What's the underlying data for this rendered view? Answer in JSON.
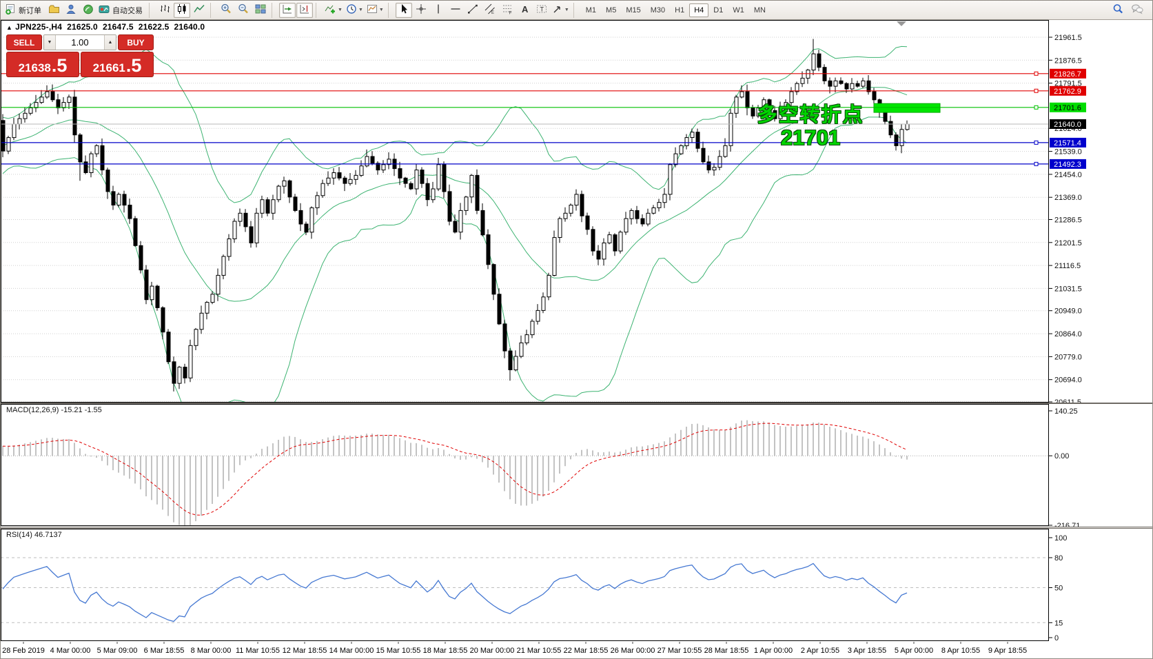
{
  "toolbar": {
    "new_order": "新订单",
    "auto_trading": "自动交易",
    "timeframes": [
      "M1",
      "M5",
      "M15",
      "M30",
      "H1",
      "H4",
      "D1",
      "W1",
      "MN"
    ],
    "active_timeframe": "H4"
  },
  "chart_header": {
    "collapse_glyph": "▲",
    "symbol_period": "JPN225-,H4",
    "open": "21625.0",
    "high": "21647.5",
    "low": "21622.5",
    "close": "21640.0"
  },
  "trade_panel": {
    "sell_label": "SELL",
    "buy_label": "BUY",
    "volume": "1.00",
    "down_glyph": "▼",
    "up_glyph": "▲",
    "sell_price_main": "21638",
    "sell_price_frac": ".5",
    "buy_price_main": "21661",
    "buy_price_frac": ".5"
  },
  "annotation": {
    "line1": "多空转折点",
    "line2": "21701"
  },
  "colors": {
    "bull": "#ffffff",
    "bear": "#000000",
    "wick": "#000000",
    "grid": "#cfcfcf",
    "frame": "#000000",
    "bollinger": "#3cb371",
    "line_red": "#e00000",
    "line_green": "#00c000",
    "line_blue": "#0000c8",
    "bid_line": "#b8b8b8",
    "bid_badge": "#000000",
    "macd_hist": "#b4b4b4",
    "macd_signal": "#e00000",
    "rsi_line": "#4578d2",
    "level_dash": "#bdbdbd",
    "highlight": "#00e600",
    "accent_red": "#d42b26",
    "annotation_green": "#00d300"
  },
  "chart_data": {
    "type": "candlestick",
    "title": "JPN225-,H4",
    "ohlc_display": [
      21625.0,
      21647.5,
      21622.5,
      21640.0
    ],
    "bid": 21640.0,
    "candles_total": 165,
    "price_axis_ticks": [
      21961.5,
      21876.5,
      21791.5,
      21624.0,
      21539.0,
      21454.0,
      21369.0,
      21286.5,
      21201.5,
      21116.5,
      21031.5,
      20949.0,
      20864.0,
      20779.0,
      20694.0,
      20611.5
    ],
    "close_anchors": [
      [
        0,
        21540
      ],
      [
        2,
        21640
      ],
      [
        4,
        21680
      ],
      [
        6,
        21720
      ],
      [
        8,
        21760
      ],
      [
        10,
        21700
      ],
      [
        12,
        21740
      ],
      [
        13,
        21600
      ],
      [
        14,
        21500
      ],
      [
        15,
        21460
      ],
      [
        16,
        21530
      ],
      [
        17,
        21560
      ],
      [
        18,
        21470
      ],
      [
        19,
        21390
      ],
      [
        20,
        21340
      ],
      [
        21,
        21380
      ],
      [
        22,
        21340
      ],
      [
        23,
        21290
      ],
      [
        24,
        21190
      ],
      [
        25,
        21100
      ],
      [
        26,
        20990
      ],
      [
        27,
        21040
      ],
      [
        28,
        20960
      ],
      [
        29,
        20870
      ],
      [
        30,
        20760
      ],
      [
        31,
        20680
      ],
      [
        32,
        20740
      ],
      [
        33,
        20700
      ],
      [
        34,
        20820
      ],
      [
        35,
        20880
      ],
      [
        36,
        20940
      ],
      [
        37,
        20980
      ],
      [
        38,
        21010
      ],
      [
        40,
        21150
      ],
      [
        42,
        21280
      ],
      [
        43,
        21310
      ],
      [
        44,
        21260
      ],
      [
        45,
        21200
      ],
      [
        46,
        21310
      ],
      [
        47,
        21360
      ],
      [
        48,
        21310
      ],
      [
        50,
        21410
      ],
      [
        51,
        21430
      ],
      [
        52,
        21370
      ],
      [
        54,
        21270
      ],
      [
        55,
        21240
      ],
      [
        56,
        21330
      ],
      [
        58,
        21420
      ],
      [
        60,
        21460
      ],
      [
        62,
        21420
      ],
      [
        64,
        21450
      ],
      [
        66,
        21520
      ],
      [
        68,
        21470
      ],
      [
        70,
        21510
      ],
      [
        72,
        21440
      ],
      [
        74,
        21400
      ],
      [
        75,
        21470
      ],
      [
        76,
        21420
      ],
      [
        77,
        21360
      ],
      [
        78,
        21400
      ],
      [
        79,
        21490
      ],
      [
        80,
        21390
      ],
      [
        81,
        21280
      ],
      [
        82,
        21240
      ],
      [
        83,
        21320
      ],
      [
        84,
        21370
      ],
      [
        85,
        21450
      ],
      [
        86,
        21320
      ],
      [
        87,
        21230
      ],
      [
        88,
        21120
      ],
      [
        89,
        21010
      ],
      [
        90,
        20900
      ],
      [
        91,
        20800
      ],
      [
        92,
        20730
      ],
      [
        93,
        20780
      ],
      [
        94,
        20830
      ],
      [
        95,
        20860
      ],
      [
        96,
        20910
      ],
      [
        97,
        20950
      ],
      [
        98,
        21000
      ],
      [
        99,
        21080
      ],
      [
        100,
        21220
      ],
      [
        101,
        21290
      ],
      [
        102,
        21310
      ],
      [
        103,
        21340
      ],
      [
        104,
        21380
      ],
      [
        105,
        21300
      ],
      [
        106,
        21250
      ],
      [
        107,
        21170
      ],
      [
        108,
        21140
      ],
      [
        109,
        21200
      ],
      [
        110,
        21230
      ],
      [
        111,
        21170
      ],
      [
        112,
        21240
      ],
      [
        113,
        21290
      ],
      [
        114,
        21320
      ],
      [
        115,
        21290
      ],
      [
        116,
        21270
      ],
      [
        117,
        21310
      ],
      [
        118,
        21330
      ],
      [
        119,
        21350
      ],
      [
        120,
        21380
      ],
      [
        121,
        21490
      ],
      [
        122,
        21530
      ],
      [
        123,
        21560
      ],
      [
        124,
        21590
      ],
      [
        125,
        21610
      ],
      [
        126,
        21550
      ],
      [
        127,
        21500
      ],
      [
        128,
        21470
      ],
      [
        129,
        21480
      ],
      [
        130,
        21520
      ],
      [
        131,
        21560
      ],
      [
        132,
        21680
      ],
      [
        133,
        21740
      ],
      [
        134,
        21760
      ],
      [
        135,
        21700
      ],
      [
        136,
        21670
      ],
      [
        137,
        21700
      ],
      [
        138,
        21730
      ],
      [
        139,
        21690
      ],
      [
        140,
        21660
      ],
      [
        141,
        21700
      ],
      [
        142,
        21720
      ],
      [
        143,
        21760
      ],
      [
        144,
        21790
      ],
      [
        145,
        21810
      ],
      [
        146,
        21840
      ],
      [
        147,
        21900
      ],
      [
        148,
        21850
      ],
      [
        149,
        21800
      ],
      [
        150,
        21780
      ],
      [
        151,
        21800
      ],
      [
        152,
        21790
      ],
      [
        153,
        21770
      ],
      [
        154,
        21790
      ],
      [
        155,
        21780
      ],
      [
        156,
        21800
      ],
      [
        157,
        21760
      ],
      [
        158,
        21730
      ],
      [
        159,
        21690
      ],
      [
        160,
        21650
      ],
      [
        161,
        21600
      ],
      [
        162,
        21560
      ],
      [
        163,
        21620
      ],
      [
        164,
        21640
      ]
    ],
    "wick_overrides": [
      [
        14,
        "low",
        21430
      ],
      [
        31,
        "low",
        20650
      ],
      [
        92,
        "low",
        20690
      ],
      [
        147,
        "high",
        21955
      ]
    ],
    "hlines": [
      {
        "price": 21826.7,
        "line": "#e00000",
        "badge": "#e00000",
        "text": "#ffffff"
      },
      {
        "price": 21762.9,
        "line": "#e00000",
        "badge": "#e00000",
        "text": "#ffffff"
      },
      {
        "price": 21701.6,
        "line": "#00c000",
        "badge": "#00dd00",
        "text": "#000000"
      },
      {
        "price": 21571.4,
        "line": "#0000c8",
        "badge": "#0000cc",
        "text": "#ffffff"
      },
      {
        "price": 21492.3,
        "line": "#0000c8",
        "badge": "#0000cc",
        "text": "#ffffff"
      }
    ],
    "bid_line": {
      "price": 21640.0
    },
    "highlight_box": {
      "candle_from": 158,
      "candle_to": 170,
      "price_top": 21716,
      "price_bottom": 21683
    },
    "bollinger": {
      "period": 20,
      "deviation": 2
    },
    "macd": {
      "label": "MACD(12,26,9) -15.21 -1.55",
      "fast": 12,
      "slow": 26,
      "signal": 9,
      "values": [
        -15.21,
        -1.55
      ],
      "scale_ticks": [
        {
          "v": 140.25,
          "t": "140.25"
        },
        {
          "v": 0,
          "t": "0.00"
        },
        {
          "v": -216.71,
          "t": "-216.71"
        }
      ]
    },
    "rsi": {
      "label": "RSI(14) 46.7137",
      "period": 14,
      "value": 46.7137,
      "levels": [
        80,
        50,
        15
      ],
      "scale_ticks": [
        100,
        80,
        50,
        15,
        0
      ]
    },
    "time_labels": [
      "28 Feb 2019",
      "4 Mar 00:00",
      "5 Mar 09:00",
      "6 Mar 18:55",
      "8 Mar 00:00",
      "11 Mar 10:55",
      "12 Mar 18:55",
      "14 Mar 00:00",
      "15 Mar 10:55",
      "18 Mar 18:55",
      "20 Mar 00:00",
      "21 Mar 10:55",
      "22 Mar 18:55",
      "26 Mar 00:00",
      "27 Mar 10:55",
      "28 Mar 18:55",
      "1 Apr 00:00",
      "2 Apr 10:55",
      "3 Apr 18:55",
      "5 Apr 00:00",
      "8 Apr 10:55",
      "9 Apr 18:55"
    ]
  }
}
